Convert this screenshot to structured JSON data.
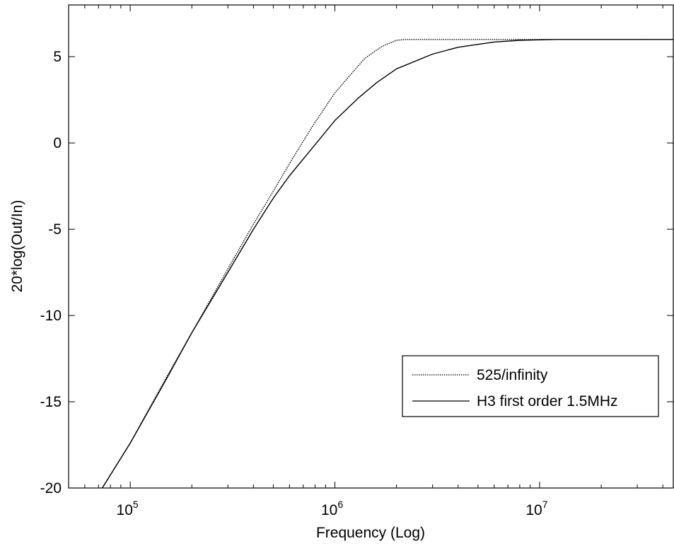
{
  "chart_data": {
    "type": "line",
    "xlabel": "Frequency (Log)",
    "ylabel": "20*log(Out/In)",
    "xscale": "log",
    "xlim": [
      50000,
      45000000
    ],
    "ylim": [
      -20,
      8
    ],
    "x_ticks": [
      {
        "value": 100000,
        "base": "10",
        "exp": "5"
      },
      {
        "value": 1000000,
        "base": "10",
        "exp": "6"
      },
      {
        "value": 10000000,
        "base": "10",
        "exp": "7"
      }
    ],
    "y_ticks": [
      {
        "value": 5,
        "label": "5"
      },
      {
        "value": 0,
        "label": "0"
      },
      {
        "value": -5,
        "label": "-5"
      },
      {
        "value": -10,
        "label": "-10"
      },
      {
        "value": -15,
        "label": "-15"
      },
      {
        "value": -20,
        "label": "-20"
      }
    ],
    "grid": false,
    "legend_position": "bottom-right",
    "colors": {
      "line": "#000000",
      "axes": "#000000",
      "background": "#ffffff"
    },
    "series": [
      {
        "name": "525/infinity",
        "dash": "dotted",
        "points": [
          [
            73000,
            -20.0
          ],
          [
            100000,
            -17.4
          ],
          [
            150000,
            -13.6
          ],
          [
            200000,
            -11.0
          ],
          [
            300000,
            -7.3
          ],
          [
            400000,
            -4.7
          ],
          [
            500000,
            -2.8
          ],
          [
            600000,
            -1.2
          ],
          [
            700000,
            0.1
          ],
          [
            800000,
            1.2
          ],
          [
            1000000,
            2.9
          ],
          [
            1200000,
            4.0
          ],
          [
            1400000,
            4.9
          ],
          [
            1700000,
            5.6
          ],
          [
            2000000,
            5.95
          ],
          [
            2200000,
            6.0
          ],
          [
            45000000,
            6.0
          ]
        ]
      },
      {
        "name": "H3 first order 1.5MHz",
        "dash": "solid",
        "points": [
          [
            73000,
            -20.0
          ],
          [
            100000,
            -17.4
          ],
          [
            150000,
            -13.7
          ],
          [
            200000,
            -11.0
          ],
          [
            300000,
            -7.5
          ],
          [
            400000,
            -5.0
          ],
          [
            500000,
            -3.2
          ],
          [
            600000,
            -1.9
          ],
          [
            800000,
            -0.1
          ],
          [
            1000000,
            1.3
          ],
          [
            1300000,
            2.6
          ],
          [
            1600000,
            3.5
          ],
          [
            2000000,
            4.3
          ],
          [
            3000000,
            5.15
          ],
          [
            4000000,
            5.55
          ],
          [
            6000000,
            5.85
          ],
          [
            8000000,
            5.95
          ],
          [
            12000000,
            6.0
          ],
          [
            45000000,
            6.0
          ]
        ]
      }
    ]
  }
}
